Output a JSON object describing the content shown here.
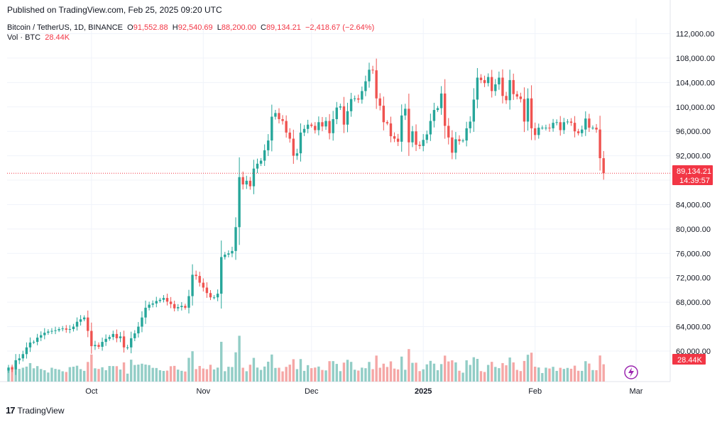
{
  "header": {
    "published": "Published on TradingView.com, Feb 25, 2025 09:20 UTC"
  },
  "symbol": {
    "name": "Bitcoin / TetherUS, 1D, BINANCE",
    "o_label": "O",
    "o_value": "91,552.88",
    "h_label": "H",
    "h_value": "92,540.69",
    "l_label": "L",
    "l_value": "88,200.00",
    "c_label": "C",
    "c_value": "89,134.21",
    "change": "−2,418.67 (−2.64%)"
  },
  "volume": {
    "label": "Vol · BTC",
    "value": "28.44K"
  },
  "price_badge": {
    "price": "89,134.21",
    "countdown": "14:39:57"
  },
  "volume_badge": "28.44K",
  "brand": {
    "name": "TradingView",
    "logo_text": "17"
  },
  "colors": {
    "up": "#26a69a",
    "down": "#ef5350",
    "vol_up": "#92cdc6",
    "vol_down": "#f5a7a6",
    "grid": "#f0f3fa",
    "axis_text": "#131722"
  },
  "chart_data": {
    "type": "candlestick",
    "title": "Bitcoin / TetherUS, 1D, BINANCE",
    "interval": "1D",
    "y_axis": {
      "ylim": [
        55000,
        114500
      ],
      "ticks": [
        60000,
        64000,
        68000,
        72000,
        76000,
        80000,
        84000,
        88000,
        92000,
        96000,
        100000,
        104000,
        108000,
        112000
      ],
      "tick_labels": [
        "60,000.00",
        "64,000.00",
        "68,000.00",
        "72,000.00",
        "76,000.00",
        "80,000.00",
        "84,000.00",
        "88,000.00",
        "92,000.00",
        "96,000.00",
        "100,000.00",
        "104,000.00",
        "108,000.00",
        "112,000.00"
      ]
    },
    "x_axis": {
      "labels": [
        {
          "day": 23,
          "text": "Oct",
          "bold": false
        },
        {
          "day": 54,
          "text": "Nov",
          "bold": false
        },
        {
          "day": 84,
          "text": "Dec",
          "bold": false
        },
        {
          "day": 115,
          "text": "2025",
          "bold": true
        },
        {
          "day": 146,
          "text": "Feb",
          "bold": false
        },
        {
          "day": 174,
          "text": "Mar",
          "bold": false
        }
      ]
    },
    "last_price": 89134.21,
    "closes": [
      57300,
      57000,
      58500,
      58800,
      59500,
      60600,
      61400,
      61500,
      62200,
      62600,
      63000,
      63200,
      63300,
      63400,
      63600,
      63700,
      63500,
      63600,
      64000,
      64800,
      65200,
      65500,
      63300,
      60800,
      61000,
      60700,
      61500,
      62000,
      62300,
      62800,
      62100,
      62400,
      60600,
      60600,
      62100,
      62900,
      64000,
      65500,
      67100,
      67600,
      67800,
      68200,
      68400,
      68700,
      68100,
      67700,
      67000,
      67200,
      67400,
      67100,
      69000,
      72500,
      72300,
      71200,
      70400,
      69500,
      68800,
      68800,
      69400,
      75400,
      75800,
      76000,
      76400,
      80300,
      88500,
      87300,
      87900,
      87000,
      89900,
      90700,
      91200,
      92900,
      94500,
      98400,
      99000,
      98000,
      97700,
      95800,
      94800,
      92000,
      92400,
      95800,
      96400,
      97100,
      96900,
      96200,
      97500,
      96800,
      97700,
      95700,
      98000,
      99900,
      100100,
      97100,
      99300,
      101300,
      101400,
      101200,
      102600,
      104200,
      106100,
      106000,
      101400,
      100200,
      97500,
      97300,
      95200,
      94800,
      94300,
      98600,
      99700,
      94200,
      96000,
      93800,
      93600,
      94600,
      95500,
      97700,
      99500,
      99800,
      102200,
      96900,
      95000,
      92500,
      94700,
      94400,
      94500,
      96500,
      97600,
      101200,
      104800,
      104400,
      103900,
      104900,
      102600,
      103700,
      104800,
      101800,
      101100,
      104400,
      102100,
      101700,
      101300,
      97600,
      101400,
      96500,
      95400,
      96600,
      96600,
      96600,
      96500,
      97400,
      97500,
      96200,
      97500,
      97600,
      97400,
      96000,
      95700,
      96300,
      98100,
      96600,
      96600,
      96300,
      91600,
      89134.21
    ]
  }
}
